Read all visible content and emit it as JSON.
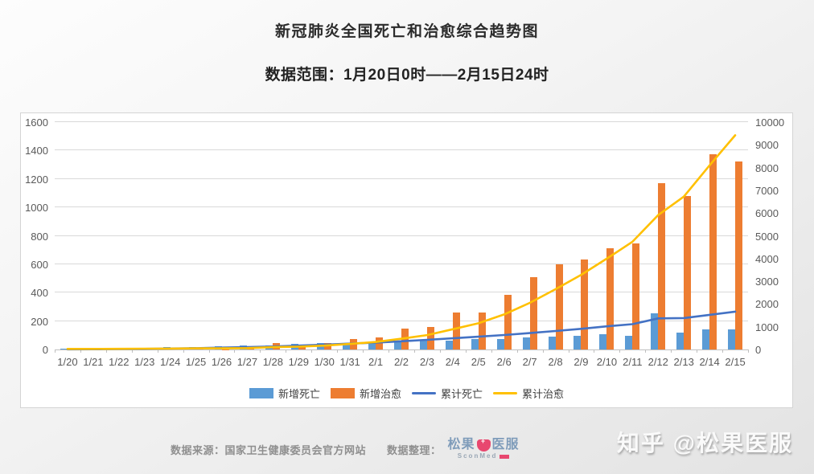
{
  "header": {
    "title": "新冠肺炎全国死亡和治愈综合趋势图",
    "subtitle": "数据范围：1月20日0时——2月15日24时"
  },
  "chart_data": {
    "type": "bar+line combo, dual y-axis",
    "title": "新冠肺炎全国死亡和治愈综合趋势图",
    "categories": [
      "1/20",
      "1/21",
      "1/22",
      "1/23",
      "1/24",
      "1/25",
      "1/26",
      "1/27",
      "1/28",
      "1/29",
      "1/30",
      "1/31",
      "2/1",
      "2/2",
      "2/3",
      "2/4",
      "2/5",
      "2/6",
      "2/7",
      "2/8",
      "2/9",
      "2/10",
      "2/11",
      "2/12",
      "2/13",
      "2/14",
      "2/15"
    ],
    "series": [
      {
        "key": "new-deaths",
        "name": "新增死亡",
        "type": "bar",
        "axis": "left",
        "color": "#5B9BD5",
        "values": [
          3,
          3,
          8,
          8,
          16,
          15,
          24,
          26,
          26,
          38,
          43,
          46,
          45,
          57,
          64,
          65,
          73,
          73,
          86,
          89,
          97,
          108,
          97,
          254,
          121,
          143,
          142
        ]
      },
      {
        "key": "new-cured",
        "name": "新增治愈",
        "type": "bar",
        "axis": "left",
        "color": "#ED7D31",
        "values": [
          0,
          0,
          3,
          6,
          4,
          11,
          2,
          9,
          43,
          21,
          47,
          72,
          85,
          147,
          157,
          260,
          261,
          387,
          510,
          599,
          632,
          715,
          744,
          1171,
          1081,
          1373,
          1323
        ]
      },
      {
        "key": "cum-deaths",
        "name": "累计死亡",
        "type": "line",
        "axis": "right",
        "color": "#4472C4",
        "values": [
          6,
          9,
          17,
          25,
          41,
          56,
          80,
          106,
          132,
          170,
          213,
          259,
          304,
          361,
          425,
          490,
          563,
          636,
          722,
          811,
          908,
          1016,
          1113,
          1367,
          1380,
          1523,
          1665
        ]
      },
      {
        "key": "cum-cured",
        "name": "累计治愈",
        "type": "line",
        "axis": "right",
        "color": "#FFC000",
        "values": [
          25,
          25,
          28,
          34,
          38,
          49,
          51,
          60,
          103,
          124,
          171,
          243,
          328,
          475,
          632,
          892,
          1153,
          1540,
          2050,
          2649,
          3281,
          3996,
          4740,
          5911,
          6723,
          8096,
          9419
        ]
      }
    ],
    "left_axis": {
      "min": 0,
      "max": 1600,
      "step": 200,
      "ticks": [
        0,
        200,
        400,
        600,
        800,
        1000,
        1200,
        1400,
        1600
      ]
    },
    "right_axis": {
      "min": 0,
      "max": 10000,
      "step": 1000,
      "ticks": [
        0,
        1000,
        2000,
        3000,
        4000,
        5000,
        6000,
        7000,
        8000,
        9000,
        10000
      ]
    },
    "grid": true,
    "legend_position": "bottom"
  },
  "footer": {
    "source": "数据来源：国家卫生健康委员会官方网站",
    "curation": "数据整理：",
    "brand": {
      "name_left": "松果",
      "name_right": "医服",
      "subtext": "SconMed"
    }
  },
  "watermark": "知乎 @松果医服",
  "colors": {
    "bar_new_deaths": "#5B9BD5",
    "bar_new_cured": "#ED7D31",
    "line_cum_deaths": "#4472C4",
    "line_cum_cured": "#FFC000",
    "gridline": "#d9d9d9",
    "axis_text": "#595959"
  }
}
